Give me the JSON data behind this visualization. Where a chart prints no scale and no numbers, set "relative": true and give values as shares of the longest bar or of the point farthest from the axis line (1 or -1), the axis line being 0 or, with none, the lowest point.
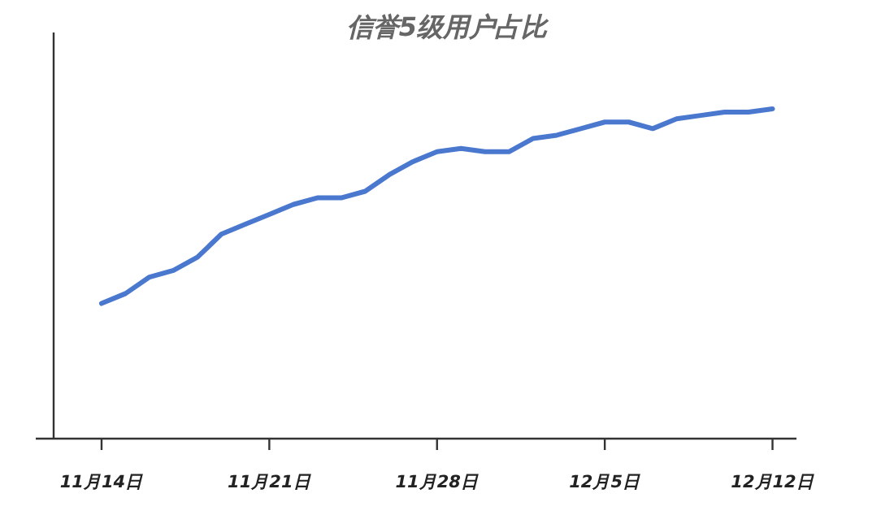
{
  "chart_data": {
    "type": "line",
    "title": "信誉5级用户占比",
    "relative": true,
    "x": [
      "--11-14",
      "--11-15",
      "--11-16",
      "--11-17",
      "--11-18",
      "--11-19",
      "--11-20",
      "--11-21",
      "--11-22",
      "--11-23",
      "--11-24",
      "--11-25",
      "--11-26",
      "--11-27",
      "--11-28",
      "--11-29",
      "--11-30",
      "--12-01",
      "--12-02",
      "--12-03",
      "--12-04",
      "--12-05",
      "--12-06",
      "--12-07",
      "--12-08",
      "--12-09",
      "--12-10",
      "--12-11",
      "--12-12"
    ],
    "series": [
      {
        "color": "#4a78cf",
        "values": [
          0.41,
          0.44,
          0.49,
          0.51,
          0.55,
          0.62,
          0.65,
          0.68,
          0.71,
          0.73,
          0.73,
          0.75,
          0.8,
          0.84,
          0.87,
          0.88,
          0.87,
          0.87,
          0.91,
          0.92,
          0.94,
          0.96,
          0.96,
          0.94,
          0.97,
          0.98,
          0.99,
          0.99,
          1
        ]
      }
    ],
    "xlim": [
      "--11-12",
      "--12-13"
    ],
    "xticks": [
      {
        "value": "--11-14",
        "label": "11月14日"
      },
      {
        "value": "--11-21",
        "label": "11月21日"
      },
      {
        "value": "--11-28",
        "label": "11月28日"
      },
      {
        "value": "--12-05",
        "label": "12月5日"
      },
      {
        "value": "--12-12",
        "label": "12月12日"
      }
    ]
  }
}
